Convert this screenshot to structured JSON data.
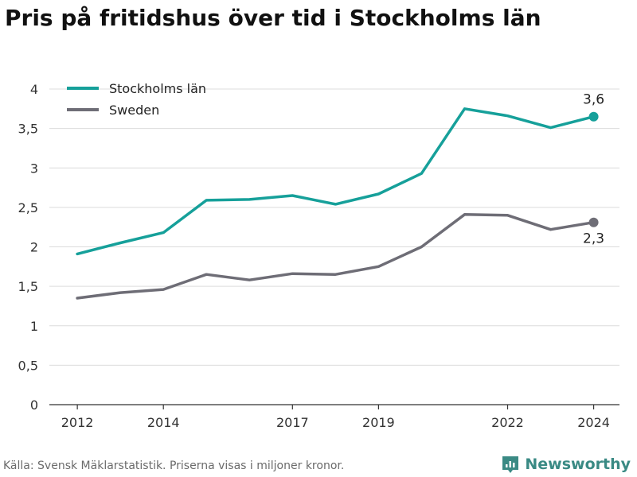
{
  "chart_data": {
    "type": "line",
    "title": "Pris på fritidshus över tid i Stockholms län",
    "xlabel": "",
    "ylabel": "",
    "x": [
      2012,
      2013,
      2014,
      2015,
      2016,
      2017,
      2018,
      2019,
      2020,
      2021,
      2022,
      2023,
      2024
    ],
    "x_ticks": [
      2012,
      2014,
      2017,
      2019,
      2022,
      2024
    ],
    "x_tick_labels": [
      "2012",
      "2014",
      "2017",
      "2019",
      "2022",
      "2024"
    ],
    "ylim": [
      0,
      4
    ],
    "y_ticks": [
      0,
      0.5,
      1,
      1.5,
      2,
      2.5,
      3,
      3.5,
      4
    ],
    "y_tick_labels": [
      "0",
      "0,5",
      "1",
      "1,5",
      "2",
      "2,5",
      "3",
      "3,5",
      "4"
    ],
    "grid": true,
    "legend_position": "top-left",
    "series": [
      {
        "name": "Stockholms län",
        "color": "#16a09a",
        "values": [
          1.91,
          2.05,
          2.18,
          2.59,
          2.6,
          2.65,
          2.54,
          2.67,
          2.93,
          3.75,
          3.66,
          3.51,
          3.65
        ],
        "end_label": "3,6"
      },
      {
        "name": "Sweden",
        "color": "#6e6d76",
        "values": [
          1.35,
          1.42,
          1.46,
          1.65,
          1.58,
          1.66,
          1.65,
          1.75,
          2.0,
          2.41,
          2.4,
          2.22,
          2.31
        ],
        "end_label": "2,3"
      }
    ]
  },
  "footer": {
    "source": "Källa: Svensk Mäklarstatistik. Priserna visas i miljoner kronor.",
    "brand_name": "Newsworthy",
    "brand_icon": "newsworthy-logo-icon",
    "brand_color": "#3a8a84"
  }
}
